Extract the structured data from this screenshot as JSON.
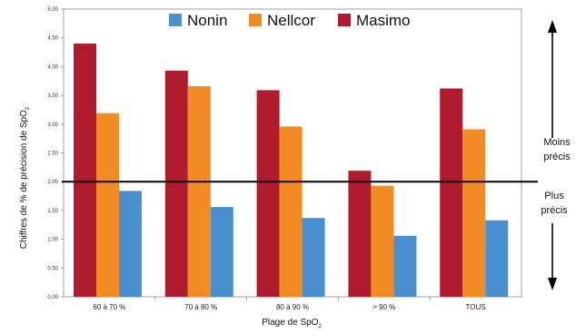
{
  "chart_data": {
    "type": "bar",
    "categories": [
      "60 à 70 %",
      "70 à 80 %",
      "80 à 90 %",
      "> 90 %",
      "TOUS"
    ],
    "series": [
      {
        "name": "Masimo",
        "color": "#b01c2e",
        "values": [
          4.4,
          3.93,
          3.59,
          2.19,
          3.62
        ]
      },
      {
        "name": "Nellcor",
        "color": "#f28c22",
        "values": [
          3.19,
          3.66,
          2.96,
          1.93,
          2.91
        ]
      },
      {
        "name": "Nonin",
        "color": "#4a90d0",
        "values": [
          1.84,
          1.56,
          1.37,
          1.06,
          1.33
        ]
      }
    ],
    "legend_order": [
      "Nonin",
      "Nellcor",
      "Masimo"
    ],
    "legend_placement": "top",
    "ylim": [
      0,
      5
    ],
    "yticks": [
      "0.00",
      "0.50",
      "1.00",
      "1.50",
      "2.00",
      "2.50",
      "3.00",
      "3.50",
      "4.00",
      "4.50",
      "5.00"
    ],
    "ylabel": "Chiffres de % de précision de SpO",
    "ylabel_sub": "2",
    "xlabel": "Plage de SpO",
    "xlabel_sub": "2",
    "reference_line": 2.0,
    "annotations": {
      "up_line1": "Moins",
      "up_line2": "précis",
      "down_line1": "Plus",
      "down_line2": "précis"
    },
    "grid": false
  }
}
